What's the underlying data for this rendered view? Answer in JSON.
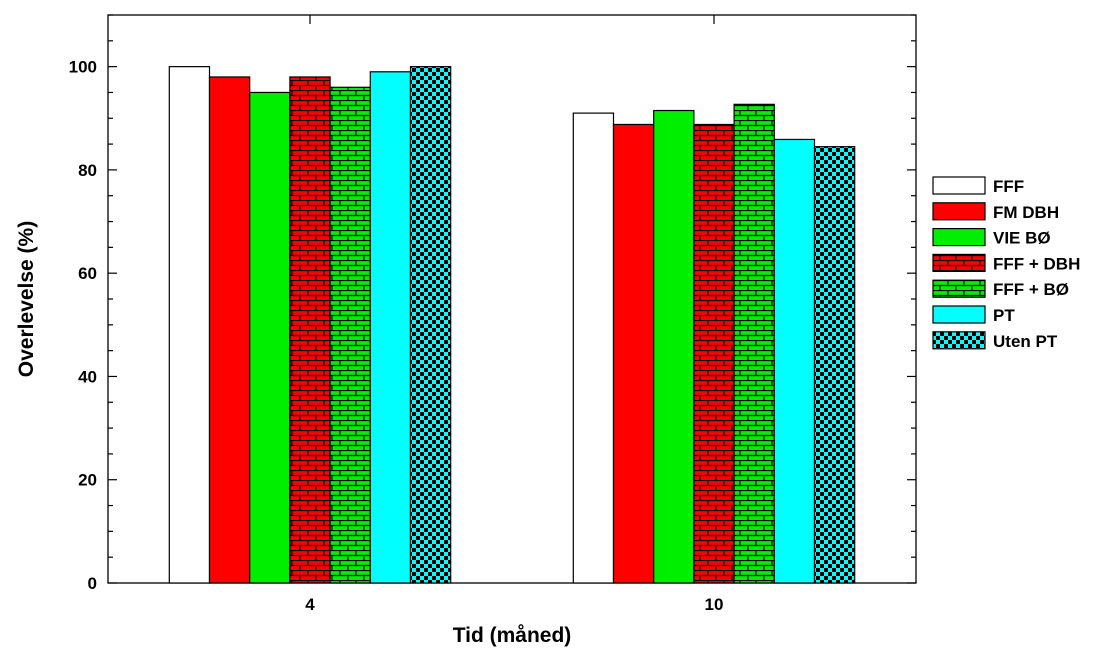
{
  "chart_data": {
    "type": "bar",
    "xlabel": "Tid (måned)",
    "ylabel": "Overlevelse  (%)",
    "categories": [
      "4",
      "10"
    ],
    "ylim": [
      0,
      110
    ],
    "yticks": [
      0,
      20,
      40,
      60,
      80,
      100
    ],
    "grid": false,
    "legend_position": "right",
    "series": [
      {
        "name": "FFF",
        "values": [
          100,
          91
        ],
        "color": "#ffffff",
        "pattern": "solid"
      },
      {
        "name": "FM DBH",
        "values": [
          98,
          88.8
        ],
        "color": "#ff0000",
        "pattern": "solid"
      },
      {
        "name": "VIE BØ",
        "values": [
          95,
          91.5
        ],
        "color": "#00ee00",
        "pattern": "solid"
      },
      {
        "name": "FFF + DBH",
        "values": [
          98,
          88.8
        ],
        "color": "#ff0000",
        "pattern": "brick"
      },
      {
        "name": "FFF + BØ",
        "values": [
          96,
          92.7
        ],
        "color": "#00ee00",
        "pattern": "brick"
      },
      {
        "name": "PT",
        "values": [
          99,
          85.9
        ],
        "color": "#00ffff",
        "pattern": "solid"
      },
      {
        "name": "Uten PT",
        "values": [
          100,
          84.5
        ],
        "color": "#00ffff",
        "pattern": "checker"
      }
    ]
  }
}
